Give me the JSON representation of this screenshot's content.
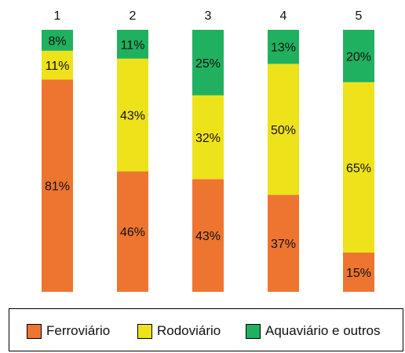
{
  "chart_data": {
    "type": "bar",
    "stacked": true,
    "normalized": true,
    "categories": [
      "1",
      "2",
      "3",
      "4",
      "5"
    ],
    "series": [
      {
        "name": "Ferroviário",
        "color": "#ED7530",
        "values": [
          81,
          46,
          43,
          37,
          15
        ],
        "labels": [
          "81%",
          "46%",
          "43%",
          "37%",
          "15%"
        ]
      },
      {
        "name": "Rodoviário",
        "color": "#EEE21A",
        "values": [
          11,
          43,
          32,
          50,
          65
        ],
        "labels": [
          "11%",
          "43%",
          "32%",
          "50%",
          "65%"
        ]
      },
      {
        "name": "Aquaviário e outros",
        "color": "#1FB15F",
        "values": [
          8,
          11,
          25,
          13,
          20
        ],
        "labels": [
          "8%",
          "11%",
          "25%",
          "13%",
          "20%"
        ]
      }
    ],
    "ylim": [
      0,
      100
    ],
    "grid": false,
    "legend_position": "bottom"
  }
}
